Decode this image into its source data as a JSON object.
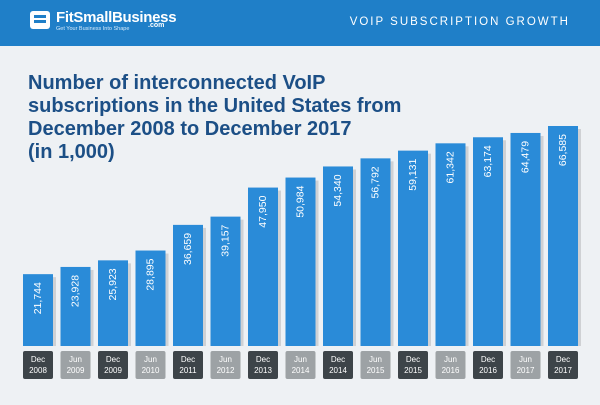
{
  "header": {
    "logo_name": "FitSmallBusiness",
    "logo_domain": ".com",
    "logo_tagline": "Get Your Business Into Shape",
    "section_title": "VOIP SUBSCRIPTION GROWTH"
  },
  "colors": {
    "header_bg": "#1f7fc8",
    "bar_fill": "#2a8bd8",
    "title_text": "#1c4f86",
    "label_dark_bg": "#3d4449",
    "label_gray_bg": "#9da2a5"
  },
  "chart_data": {
    "type": "bar",
    "title": [
      "Number of interconnected VoIP",
      "subscriptions in the United States from",
      "December 2008 to December 2017",
      "(in 1,000)"
    ],
    "categories": [
      [
        "Dec",
        "2008"
      ],
      [
        "Jun",
        "2009"
      ],
      [
        "Dec",
        "2009"
      ],
      [
        "Jun",
        "2010"
      ],
      [
        "Dec",
        "2011"
      ],
      [
        "Jun",
        "2012"
      ],
      [
        "Dec",
        "2013"
      ],
      [
        "Jun",
        "2014"
      ],
      [
        "Dec",
        "2014"
      ],
      [
        "Jun",
        "2015"
      ],
      [
        "Dec",
        "2015"
      ],
      [
        "Jun",
        "2016"
      ],
      [
        "Dec",
        "2016"
      ],
      [
        "Jun",
        "2017"
      ],
      [
        "Dec",
        "2017"
      ]
    ],
    "values": [
      21744,
      23928,
      25923,
      28895,
      36659,
      39157,
      47950,
      50984,
      54340,
      56792,
      59131,
      61342,
      63174,
      64479,
      66585
    ],
    "value_labels": [
      "21,744",
      "23,928",
      "25,923",
      "28,895",
      "36,659",
      "39,157",
      "47,950",
      "50,984",
      "54,340",
      "56,792",
      "59,131",
      "61,342",
      "63,174",
      "64,479",
      "66,585"
    ],
    "label_styles": [
      "dark",
      "gray",
      "dark",
      "gray",
      "dark",
      "gray",
      "dark",
      "gray",
      "dark",
      "gray",
      "dark",
      "gray",
      "dark",
      "gray",
      "dark"
    ],
    "grid": false,
    "legend": "none"
  }
}
